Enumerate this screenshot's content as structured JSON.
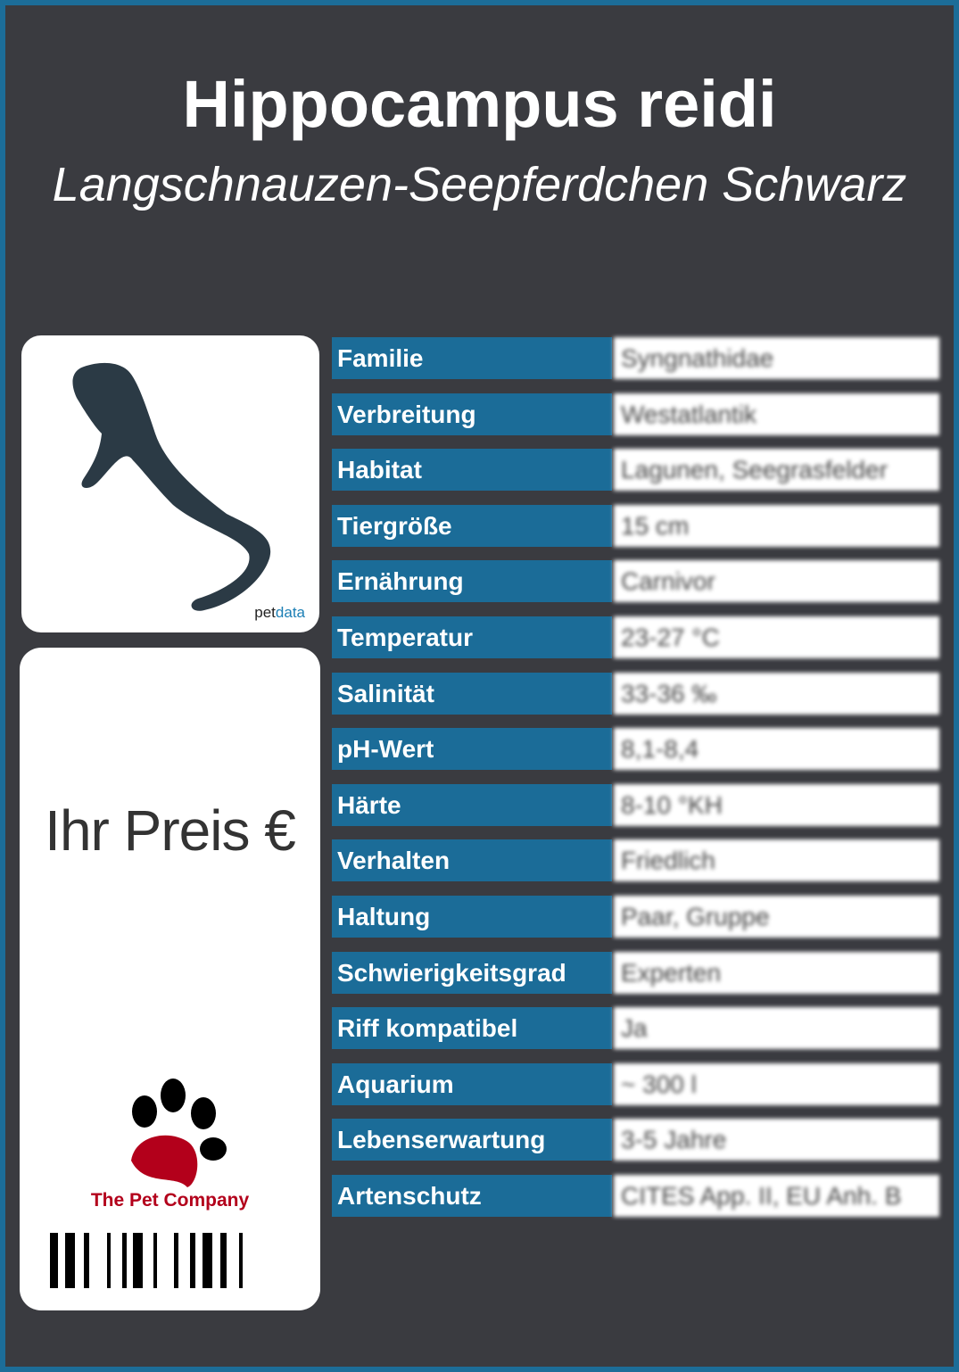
{
  "header": {
    "title": "Hippocampus reidi",
    "subtitle": "Langschnauzen-Seepferdchen Schwarz"
  },
  "image_card": {
    "brand_prefix": "pet",
    "brand_suffix": "data"
  },
  "price_card": {
    "price_label": "Ihr Preis €",
    "company": "The Pet Company"
  },
  "colors": {
    "frame": "#1c6d98",
    "background": "#3a3b40",
    "label_bg": "#1b6c98",
    "paw_red": "#b3001b"
  },
  "attributes": [
    {
      "label": "Familie",
      "value": "Syngnathidae"
    },
    {
      "label": "Verbreitung",
      "value": "Westatlantik"
    },
    {
      "label": "Habitat",
      "value": "Lagunen, Seegrasfelder"
    },
    {
      "label": "Tiergröße",
      "value": "15 cm"
    },
    {
      "label": "Ernährung",
      "value": "Carnivor"
    },
    {
      "label": "Temperatur",
      "value": "23-27 °C"
    },
    {
      "label": "Salinität",
      "value": "33-36 ‰"
    },
    {
      "label": "pH-Wert",
      "value": "8,1-8,4"
    },
    {
      "label": "Härte",
      "value": "8-10 °KH"
    },
    {
      "label": "Verhalten",
      "value": "Friedlich"
    },
    {
      "label": "Haltung",
      "value": "Paar, Gruppe"
    },
    {
      "label": "Schwierigkeitsgrad",
      "value": "Experten"
    },
    {
      "label": "Riff kompatibel",
      "value": "Ja"
    },
    {
      "label": "Aquarium",
      "value": "~ 300 l"
    },
    {
      "label": "Lebenserwartung",
      "value": "3-5 Jahre"
    },
    {
      "label": "Artenschutz",
      "value": "CITES App. II, EU Anh. B"
    }
  ]
}
